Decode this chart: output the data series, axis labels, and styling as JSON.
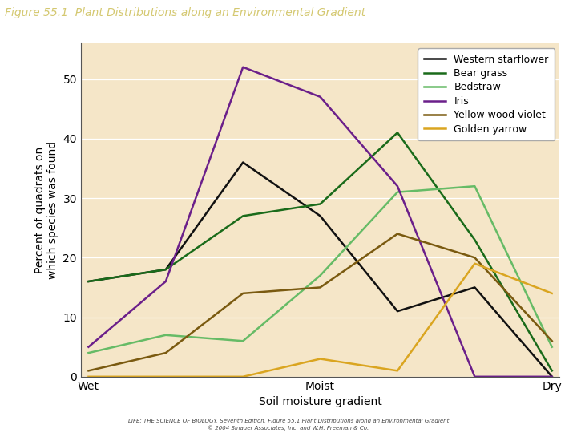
{
  "title": "Figure 55.1  Plant Distributions along an Environmental Gradient",
  "xlabel": "Soil moisture gradient",
  "ylabel": "Percent of quadrats on\nwhich species was found",
  "xtick_labels": [
    "Wet",
    "",
    "",
    "Moist",
    "",
    "",
    "Dry"
  ],
  "xtick_positions": [
    0,
    1,
    2,
    3,
    4,
    5,
    6
  ],
  "ylim": [
    0,
    56
  ],
  "yticks": [
    0,
    10,
    20,
    30,
    40,
    50
  ],
  "fig_bg": "#ffffff",
  "plot_bg": "#f5e6c8",
  "title_bg": "#3d2b6b",
  "title_color": "#d4c870",
  "series": [
    {
      "name": "Western starflower",
      "color": "#111111",
      "x": [
        0,
        1,
        2,
        3,
        4,
        5,
        6
      ],
      "y": [
        16,
        18,
        36,
        27,
        11,
        15,
        0
      ]
    },
    {
      "name": "Bear grass",
      "color": "#1a6b1a",
      "x": [
        0,
        1,
        2,
        3,
        4,
        5,
        6
      ],
      "y": [
        16,
        18,
        27,
        29,
        41,
        23,
        1
      ]
    },
    {
      "name": "Bedstraw",
      "color": "#66bb66",
      "x": [
        0,
        1,
        2,
        3,
        4,
        5,
        6
      ],
      "y": [
        4,
        7,
        6,
        17,
        31,
        32,
        5
      ]
    },
    {
      "name": "Iris",
      "color": "#6b1f8a",
      "x": [
        0,
        1,
        2,
        3,
        4,
        5,
        6
      ],
      "y": [
        5,
        16,
        52,
        47,
        32,
        0,
        0
      ]
    },
    {
      "name": "Yellow wood violet",
      "color": "#7a5a10",
      "x": [
        0,
        1,
        2,
        3,
        4,
        5,
        6
      ],
      "y": [
        1,
        4,
        14,
        15,
        24,
        20,
        6
      ]
    },
    {
      "name": "Golden yarrow",
      "color": "#DAA520",
      "x": [
        0,
        1,
        2,
        3,
        4,
        5,
        6
      ],
      "y": [
        0,
        0,
        0,
        3,
        1,
        19,
        14
      ]
    }
  ],
  "footnote_line1": "LIFE: THE SCIENCE OF BIOLOGY, Seventh Edition, Figure 55.1 Plant Distributions along an Environmental Gradient",
  "footnote_line2": "© 2004 Sinauer Associates, Inc. and W.H. Freeman & Co.",
  "title_fontsize": 10,
  "axis_fontsize": 10,
  "tick_fontsize": 10,
  "legend_fontsize": 9,
  "linewidth": 1.8
}
